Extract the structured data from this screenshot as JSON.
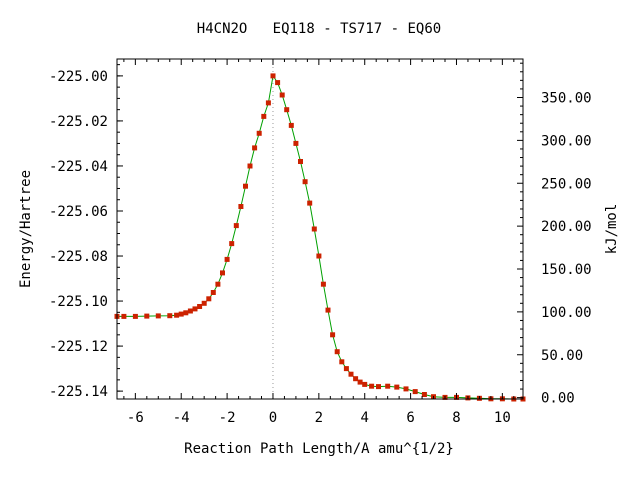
{
  "chart_data": {
    "type": "line",
    "title": "H4CN2O   EQ118 - TS717 - EQ60",
    "xlabel": "Reaction Path Length/A amu^{1/2}",
    "ylabel": "Energy/Hartree",
    "y2label": "kJ/mol",
    "xlim": [
      -6.8,
      10.9
    ],
    "ylim": [
      -225.1435,
      -224.9925
    ],
    "y2lim": [
      -1.6,
      394.9
    ],
    "x_ticks": [
      -6,
      -4,
      -2,
      0,
      2,
      4,
      6,
      8,
      10
    ],
    "x_tick_labels": [
      "-6",
      "-4",
      "-2",
      "0",
      "2",
      "4",
      "6",
      "8",
      "10"
    ],
    "y_ticks": [
      -225.0,
      -225.02,
      -225.04,
      -225.06,
      -225.08,
      -225.1,
      -225.12,
      -225.14
    ],
    "y_tick_labels": [
      "-225.00",
      "-225.02",
      "-225.04",
      "-225.06",
      "-225.08",
      "-225.10",
      "-225.12",
      "-225.14"
    ],
    "y2_ticks": [
      0,
      50,
      100,
      150,
      200,
      250,
      300,
      350
    ],
    "y2_tick_labels": [
      "0.00",
      "50.00",
      "100.00",
      "150.00",
      "200.00",
      "250.00",
      "300.00",
      "350.00"
    ],
    "ts_marker_x": 0,
    "grid": false,
    "series": [
      {
        "line_color": "#00a000",
        "marker_color": "#cc2200",
        "x": [
          -6.8,
          -6.5,
          -6.0,
          -5.5,
          -5.0,
          -4.5,
          -4.2,
          -4.0,
          -3.8,
          -3.6,
          -3.4,
          -3.2,
          -3.0,
          -2.8,
          -2.6,
          -2.4,
          -2.2,
          -2.0,
          -1.8,
          -1.6,
          -1.4,
          -1.2,
          -1.0,
          -0.8,
          -0.6,
          -0.4,
          -0.2,
          0.0,
          0.2,
          0.4,
          0.6,
          0.8,
          1.0,
          1.2,
          1.4,
          1.6,
          1.8,
          2.0,
          2.2,
          2.4,
          2.6,
          2.8,
          3.0,
          3.2,
          3.4,
          3.6,
          3.8,
          4.0,
          4.3,
          4.6,
          5.0,
          5.4,
          5.8,
          6.2,
          6.6,
          7.0,
          7.5,
          8.0,
          8.5,
          9.0,
          9.5,
          10.0,
          10.5,
          10.9
        ],
        "y": [
          -225.1068,
          -225.1068,
          -225.1068,
          -225.1067,
          -225.1066,
          -225.1065,
          -225.1063,
          -225.1058,
          -225.1052,
          -225.1044,
          -225.1035,
          -225.1024,
          -225.101,
          -225.099,
          -225.0962,
          -225.0925,
          -225.0875,
          -225.0815,
          -225.0745,
          -225.0665,
          -225.058,
          -225.049,
          -225.04,
          -225.032,
          -225.0255,
          -225.018,
          -225.012,
          -225.0,
          -225.003,
          -225.0085,
          -225.015,
          -225.022,
          -225.03,
          -225.038,
          -225.047,
          -225.0565,
          -225.068,
          -225.08,
          -225.0925,
          -225.104,
          -225.115,
          -225.1225,
          -225.127,
          -225.13,
          -225.1325,
          -225.1345,
          -225.136,
          -225.137,
          -225.1378,
          -225.138,
          -225.1378,
          -225.1382,
          -225.139,
          -225.1402,
          -225.1415,
          -225.1425,
          -225.1428,
          -225.1428,
          -225.143,
          -225.1432,
          -225.1434,
          -225.1434,
          -225.1435,
          -225.1435
        ]
      }
    ]
  }
}
